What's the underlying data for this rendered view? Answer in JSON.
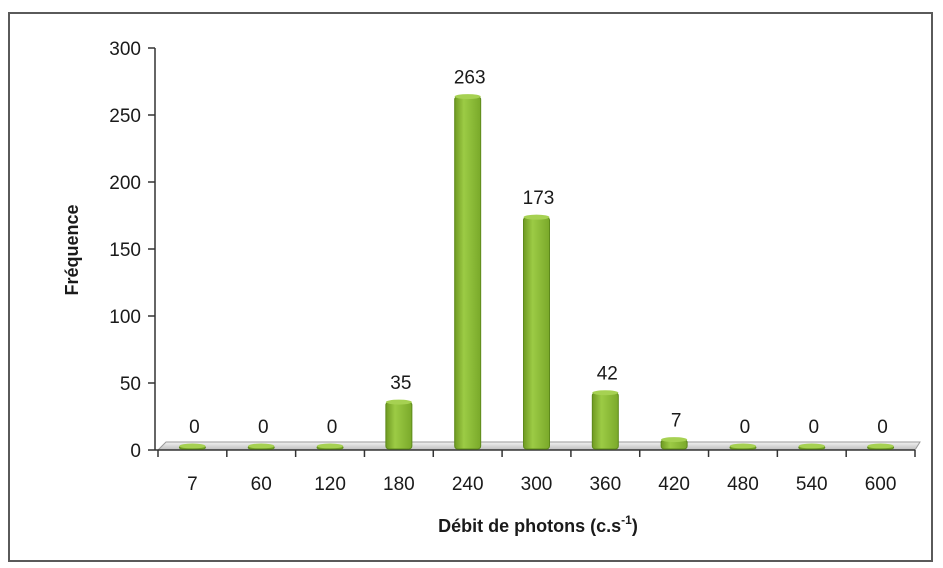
{
  "chart_data": {
    "type": "bar",
    "categories": [
      "7",
      "60",
      "120",
      "180",
      "240",
      "300",
      "360",
      "420",
      "480",
      "540",
      "600"
    ],
    "values": [
      0,
      0,
      0,
      35,
      263,
      173,
      42,
      7,
      0,
      0,
      0
    ],
    "data_labels": [
      "0",
      "0",
      "0",
      "35",
      "263",
      "173",
      "42",
      "7",
      "0",
      "0",
      "0"
    ],
    "title": "",
    "xlabel_main": "Débit de photons (c.s",
    "xlabel_sup": "-1",
    "xlabel_end": ")",
    "ylabel": "Fréquence",
    "ylim": [
      0,
      300
    ],
    "yticks": [
      "0",
      "50",
      "100",
      "150",
      "200",
      "250",
      "300"
    ],
    "bar_color": "#8cbd35",
    "grid": false,
    "legend": "none"
  }
}
